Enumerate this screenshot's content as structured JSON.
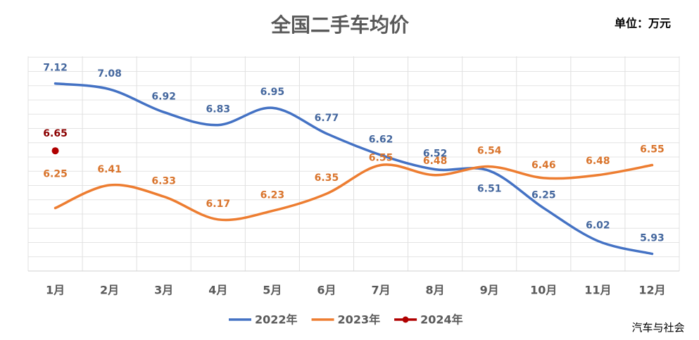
{
  "chart_data": {
    "type": "line",
    "title": "全国二手车均价",
    "unit": "单位：万元",
    "source": "汽车与社会",
    "categories": [
      "1月",
      "2月",
      "3月",
      "4月",
      "5月",
      "6月",
      "7月",
      "8月",
      "9月",
      "10月",
      "11月",
      "12月"
    ],
    "ylim": [
      5.81,
      7.31
    ],
    "series": [
      {
        "name": "2022年",
        "color": "#4472c4",
        "label_color": "#44679e",
        "values": [
          7.12,
          7.08,
          6.92,
          6.83,
          6.95,
          6.77,
          6.62,
          6.52,
          6.51,
          6.25,
          6.02,
          5.93
        ]
      },
      {
        "name": "2023年",
        "color": "#ed7d31",
        "label_color": "#d9742c",
        "values": [
          6.25,
          6.41,
          6.33,
          6.17,
          6.23,
          6.35,
          6.55,
          6.48,
          6.54,
          6.46,
          6.48,
          6.55
        ]
      },
      {
        "name": "2024年",
        "color": "#b00000",
        "label_color": "#8b0000",
        "values": [
          6.65,
          null,
          null,
          null,
          null,
          null,
          null,
          null,
          null,
          null,
          null,
          null
        ]
      }
    ]
  }
}
